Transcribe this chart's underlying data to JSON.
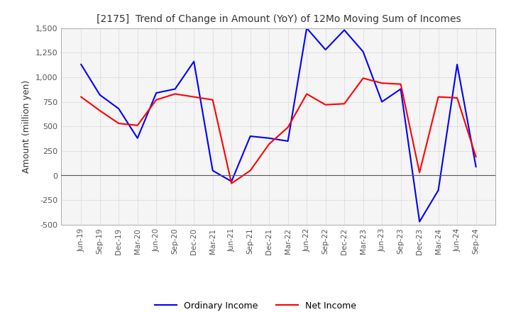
{
  "title": "[2175]  Trend of Change in Amount (YoY) of 12Mo Moving Sum of Incomes",
  "ylabel": "Amount (million yen)",
  "background_color": "#ffffff",
  "plot_bg_color": "#f5f5f5",
  "grid_color": "#aaaaaa",
  "ylim": [
    -500,
    1500
  ],
  "yticks": [
    -500,
    -250,
    0,
    250,
    500,
    750,
    1000,
    1250,
    1500
  ],
  "x_labels": [
    "Jun-19",
    "Sep-19",
    "Dec-19",
    "Mar-20",
    "Jun-20",
    "Sep-20",
    "Dec-20",
    "Mar-21",
    "Jun-21",
    "Sep-21",
    "Dec-21",
    "Mar-22",
    "Jun-22",
    "Sep-22",
    "Dec-22",
    "Mar-23",
    "Jun-23",
    "Sep-23",
    "Dec-23",
    "Mar-24",
    "Jun-24",
    "Sep-24"
  ],
  "ordinary_income": [
    1130,
    820,
    680,
    380,
    840,
    880,
    1160,
    50,
    -60,
    400,
    380,
    350,
    1500,
    1280,
    1480,
    1260,
    750,
    880,
    -470,
    -150,
    1130,
    90
  ],
  "net_income": [
    800,
    660,
    530,
    510,
    770,
    830,
    800,
    770,
    -80,
    50,
    320,
    490,
    830,
    720,
    730,
    990,
    940,
    930,
    30,
    800,
    790,
    190
  ],
  "ordinary_color": "#0000ff",
  "net_color": "#ff0000",
  "line_width": 1.5
}
